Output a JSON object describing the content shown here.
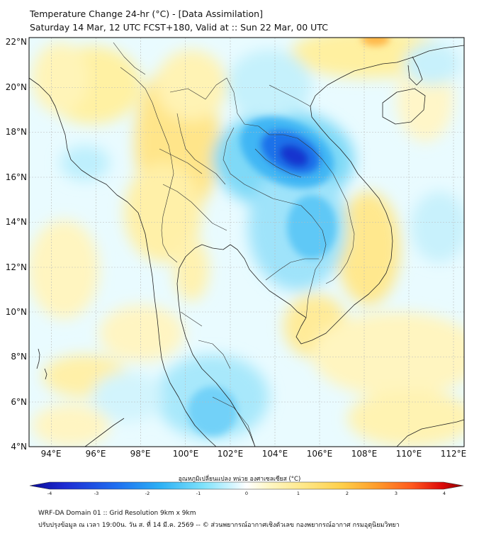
{
  "title": "Temperature Change 24-hr (°C) - [Data Assimilation]",
  "subtitle": "Saturday 14 Mar, 12 UTC FCST+180, Valid at :: Sun 22 Mar, 00 UTC",
  "lat_ticks": [
    "22°N",
    "20°N",
    "18°N",
    "16°N",
    "14°N",
    "12°N",
    "10°N",
    "8°N",
    "6°N",
    "4°N"
  ],
  "lon_ticks": [
    "94°E",
    "96°E",
    "98°E",
    "100°E",
    "102°E",
    "104°E",
    "106°E",
    "108°E",
    "110°E",
    "112°E"
  ],
  "map_extent": {
    "lon_min": 93.0,
    "lon_max": 112.4,
    "lat_min": 4.0,
    "lat_max": 22.2
  },
  "colorbar": {
    "label": "อุณหภูมิเปลี่ยนแปลง หน่วย องศาเซลเซียส (°C)",
    "ticks": [
      "-4",
      "-3",
      "-2",
      "-1",
      "0",
      "1",
      "2",
      "3",
      "4"
    ],
    "min": -4,
    "max": 4,
    "colors": [
      "#0a0a96",
      "#1e2bd2",
      "#1f6ff0",
      "#2cb0f5",
      "#7ee2fb",
      "#d7f6ff",
      "#ffffff",
      "#fff7c6",
      "#ffe88a",
      "#ffcf4a",
      "#ff9c2b",
      "#ff5a1e",
      "#dd0a0a",
      "#8c0000"
    ]
  },
  "footer": {
    "line1": "WRF-DA Domain 01 :: Grid Resolution 9km x 9km",
    "line2": "ปรับปรุงข้อมูล ณ เวลา 19:00น. วัน ส. ที่ 14 มี.ค. 2569 -- © ส่วนพยากรณ์อากาศเชิงตัวเลข กองพยากรณ์อากาศ กรมอุตุนิยมวิทยา"
  }
}
